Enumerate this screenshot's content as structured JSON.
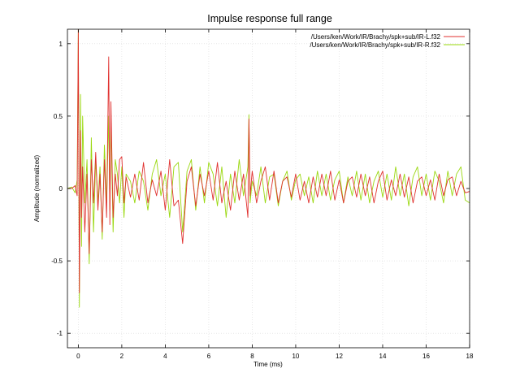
{
  "chart_data": {
    "type": "line",
    "title": "Impulse response full range",
    "xlabel": "Time (ms)",
    "ylabel": "Amplitude (normalized)",
    "xlim": [
      -0.5,
      18
    ],
    "ylim": [
      -1.1,
      1.1
    ],
    "xticks": [
      0,
      2,
      4,
      6,
      8,
      10,
      12,
      14,
      16,
      18
    ],
    "yticks": [
      1,
      0.5,
      0,
      -0.5,
      -1
    ],
    "xtick_labels": [
      "0",
      "2",
      "4",
      "6",
      "8",
      "10",
      "12",
      "14",
      "16",
      "18"
    ],
    "ytick_labels": [
      "1",
      "0.5",
      "0",
      "-0.5",
      "-1"
    ],
    "grid": true,
    "legend_position": "top-right",
    "series": [
      {
        "name": "/Users/ken/Work/IR/Brachy/spk+sub/IR-L.f32",
        "color": "#e0312f",
        "x": [
          -0.5,
          -0.3,
          -0.15,
          -0.05,
          0,
          0.05,
          0.1,
          0.15,
          0.2,
          0.3,
          0.4,
          0.5,
          0.6,
          0.7,
          0.8,
          0.9,
          1.0,
          1.1,
          1.2,
          1.3,
          1.4,
          1.45,
          1.5,
          1.6,
          1.7,
          1.8,
          1.9,
          2.0,
          2.1,
          2.2,
          2.4,
          2.6,
          2.8,
          3.0,
          3.2,
          3.4,
          3.6,
          3.8,
          4.0,
          4.2,
          4.4,
          4.6,
          4.8,
          5.0,
          5.2,
          5.4,
          5.6,
          5.8,
          6.0,
          6.2,
          6.4,
          6.6,
          6.8,
          7.0,
          7.2,
          7.4,
          7.6,
          7.8,
          7.85,
          7.9,
          8.0,
          8.2,
          8.4,
          8.6,
          8.8,
          9.0,
          9.2,
          9.4,
          9.6,
          9.8,
          10.0,
          10.2,
          10.4,
          10.6,
          10.8,
          11.0,
          11.2,
          11.4,
          11.6,
          11.8,
          12.0,
          12.2,
          12.4,
          12.6,
          12.8,
          13.0,
          13.2,
          13.4,
          13.6,
          13.8,
          14.0,
          14.2,
          14.4,
          14.6,
          14.8,
          15.0,
          15.2,
          15.4,
          15.6,
          15.8,
          16.0,
          16.2,
          16.4,
          16.6,
          16.8,
          17.0,
          17.2,
          17.4,
          17.6,
          17.8,
          18.0
        ],
        "y": [
          0,
          0,
          0.02,
          -0.05,
          1.1,
          -0.72,
          0.4,
          -0.2,
          0.15,
          -0.3,
          0.1,
          -0.45,
          0.2,
          -0.1,
          0.25,
          -0.15,
          0.1,
          -0.3,
          0.2,
          -0.2,
          0.91,
          -0.25,
          0.6,
          -0.2,
          0.1,
          -0.05,
          0.2,
          0.22,
          -0.1,
          0.08,
          -0.06,
          0.1,
          -0.08,
          0.18,
          -0.1,
          0.06,
          -0.05,
          0.12,
          -0.15,
          0.2,
          -0.12,
          -0.08,
          -0.38,
          0.05,
          0.15,
          -0.12,
          0.1,
          -0.05,
          0.12,
          -0.08,
          0.18,
          -0.1,
          0.05,
          -0.15,
          0.12,
          -0.08,
          0.1,
          -0.2,
          0.48,
          -0.05,
          0.12,
          -0.1,
          0.05,
          0.15,
          -0.08,
          0.12,
          -0.1,
          0.05,
          0.08,
          -0.06,
          0.1,
          -0.08,
          0.05,
          -0.1,
          0.08,
          -0.06,
          0.1,
          -0.05,
          0.12,
          -0.08,
          0.06,
          -0.1,
          0.05,
          0.08,
          -0.06,
          0.1,
          -0.05,
          0.08,
          -0.1,
          0.05,
          0.12,
          -0.08,
          0.06,
          -0.05,
          0.1,
          -0.06,
          0.08,
          -0.1,
          0.05,
          0.08,
          -0.05,
          0.06,
          -0.08,
          0.1,
          -0.05,
          0.06,
          0.08,
          -0.05,
          0.05,
          -0.03,
          -0.02
        ]
      },
      {
        "name": "/Users/ken/Work/IR/Brachy/spk+sub/IR-R.f32",
        "color": "#9ad80f",
        "x": [
          -0.5,
          -0.3,
          -0.15,
          -0.05,
          0,
          0.05,
          0.1,
          0.15,
          0.2,
          0.3,
          0.4,
          0.5,
          0.6,
          0.7,
          0.8,
          0.9,
          1.0,
          1.1,
          1.2,
          1.3,
          1.4,
          1.45,
          1.5,
          1.6,
          1.7,
          1.8,
          1.9,
          2.0,
          2.1,
          2.2,
          2.4,
          2.6,
          2.8,
          3.0,
          3.2,
          3.4,
          3.6,
          3.8,
          4.0,
          4.2,
          4.4,
          4.6,
          4.8,
          5.0,
          5.2,
          5.4,
          5.6,
          5.8,
          6.0,
          6.2,
          6.4,
          6.6,
          6.8,
          7.0,
          7.2,
          7.4,
          7.6,
          7.8,
          7.85,
          7.9,
          8.0,
          8.2,
          8.4,
          8.6,
          8.8,
          9.0,
          9.2,
          9.4,
          9.6,
          9.8,
          10.0,
          10.2,
          10.4,
          10.6,
          10.8,
          11.0,
          11.2,
          11.4,
          11.6,
          11.8,
          12.0,
          12.2,
          12.4,
          12.6,
          12.8,
          13.0,
          13.2,
          13.4,
          13.6,
          13.8,
          14.0,
          14.2,
          14.4,
          14.6,
          14.8,
          15.0,
          15.2,
          15.4,
          15.6,
          15.8,
          16.0,
          16.2,
          16.4,
          16.6,
          16.8,
          17.0,
          17.2,
          17.4,
          17.6,
          17.8,
          18.0
        ],
        "y": [
          0,
          0.01,
          -0.03,
          0.06,
          1.1,
          -0.82,
          0.65,
          -0.4,
          0.5,
          -0.1,
          0.2,
          -0.52,
          0.35,
          -0.3,
          0.2,
          -0.1,
          0.15,
          -0.35,
          0.3,
          -0.1,
          0.5,
          -0.15,
          0.45,
          -0.3,
          0.2,
          0.1,
          -0.1,
          0.15,
          -0.2,
          0.1,
          0.05,
          -0.1,
          0.12,
          0.05,
          -0.15,
          0.1,
          0.2,
          -0.05,
          0.1,
          -0.2,
          0.15,
          0.18,
          -0.3,
          0.12,
          0.2,
          -0.15,
          0.15,
          -0.1,
          0.18,
          0.1,
          -0.12,
          0.15,
          -0.2,
          0.1,
          -0.1,
          0.2,
          -0.05,
          0.15,
          0.51,
          -0.1,
          0.05,
          -0.05,
          0.15,
          -0.1,
          0.08,
          0.1,
          -0.12,
          0.05,
          0.12,
          -0.08,
          0.06,
          0.1,
          -0.05,
          0.08,
          -0.1,
          0.12,
          -0.05,
          0.1,
          -0.08,
          0.06,
          0.12,
          -0.1,
          0.08,
          -0.05,
          0.12,
          -0.08,
          0.1,
          -0.1,
          0.05,
          0.12,
          -0.06,
          0.1,
          -0.08,
          0.15,
          -0.05,
          0.1,
          -0.12,
          0.08,
          0.15,
          -0.05,
          0.1,
          -0.08,
          0.12,
          0.05,
          -0.1,
          0.12,
          -0.05,
          0.1,
          0.15,
          -0.08,
          -0.1
        ]
      }
    ]
  }
}
